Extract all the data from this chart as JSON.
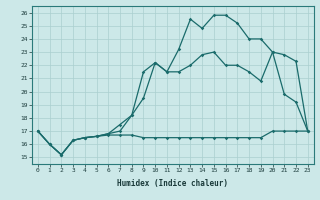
{
  "title": "",
  "xlabel": "Humidex (Indice chaleur)",
  "bg_color": "#cce8e8",
  "line_color": "#1a6b6b",
  "grid_color": "#aacfcf",
  "xlim": [
    -0.5,
    23.5
  ],
  "ylim": [
    14.5,
    26.5
  ],
  "yticks": [
    15,
    16,
    17,
    18,
    19,
    20,
    21,
    22,
    23,
    24,
    25,
    26
  ],
  "xticks": [
    0,
    1,
    2,
    3,
    4,
    5,
    6,
    7,
    8,
    9,
    10,
    11,
    12,
    13,
    14,
    15,
    16,
    17,
    18,
    19,
    20,
    21,
    22,
    23
  ],
  "line1_x": [
    0,
    1,
    2,
    3,
    4,
    5,
    6,
    7,
    8,
    9,
    10,
    11,
    12,
    13,
    14,
    15,
    16,
    17,
    18,
    19,
    20,
    21,
    22,
    23
  ],
  "line1_y": [
    17.0,
    16.0,
    15.2,
    16.3,
    16.5,
    16.6,
    16.7,
    16.7,
    16.7,
    16.5,
    16.5,
    16.5,
    16.5,
    16.5,
    16.5,
    16.5,
    16.5,
    16.5,
    16.5,
    16.5,
    17.0,
    17.0,
    17.0,
    17.0
  ],
  "line2_x": [
    0,
    1,
    2,
    3,
    4,
    5,
    6,
    7,
    8,
    9,
    10,
    11,
    12,
    13,
    14,
    15,
    16,
    17,
    18,
    19,
    20,
    21,
    22,
    23
  ],
  "line2_y": [
    17.0,
    16.0,
    15.2,
    16.3,
    16.5,
    16.6,
    16.8,
    17.0,
    18.2,
    21.5,
    22.2,
    21.5,
    23.2,
    25.5,
    24.8,
    25.8,
    25.8,
    25.2,
    24.0,
    24.0,
    23.0,
    19.8,
    19.2,
    17.0
  ],
  "line3_x": [
    0,
    1,
    2,
    3,
    4,
    5,
    6,
    7,
    8,
    9,
    10,
    11,
    12,
    13,
    14,
    15,
    16,
    17,
    18,
    19,
    20,
    21,
    22,
    23
  ],
  "line3_y": [
    17.0,
    16.0,
    15.2,
    16.3,
    16.5,
    16.6,
    16.8,
    17.5,
    18.2,
    19.5,
    22.2,
    21.5,
    21.5,
    22.0,
    22.8,
    23.0,
    22.0,
    22.0,
    21.5,
    20.8,
    23.0,
    22.8,
    22.3,
    17.0
  ]
}
